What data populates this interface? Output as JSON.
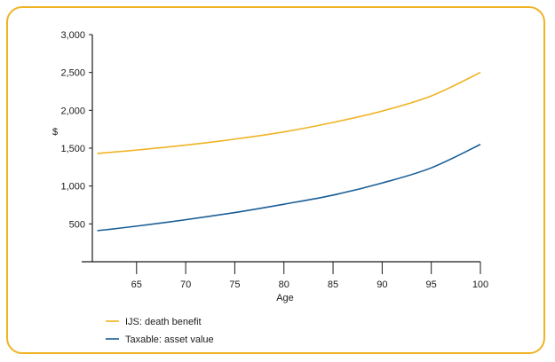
{
  "chart_data": {
    "type": "line",
    "title": "",
    "xlabel": "Age",
    "ylabel": "$",
    "xlim": [
      60.5,
      100
    ],
    "ylim": [
      0,
      3000
    ],
    "x_ticks": [
      "65",
      "70",
      "75",
      "80",
      "85",
      "90",
      "95",
      "100"
    ],
    "y_ticks": [
      "500",
      "1,000",
      "1,500",
      "2,000",
      "2,500",
      "3,000"
    ],
    "grid": false,
    "legend_position": "bottom-left",
    "x": [
      61,
      65,
      70,
      75,
      80,
      85,
      90,
      95,
      100
    ],
    "series": [
      {
        "name": "IJS: death benefit",
        "color": "#f0b323",
        "values": [
          1430,
          1475,
          1540,
          1620,
          1715,
          1840,
          1990,
          2190,
          2500
        ]
      },
      {
        "name": "Taxable: asset value",
        "color": "#1a5e96",
        "values": [
          410,
          470,
          555,
          650,
          760,
          880,
          1040,
          1240,
          1550
        ]
      }
    ]
  }
}
